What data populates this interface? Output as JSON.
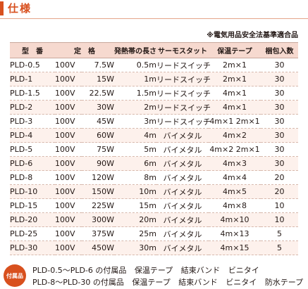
{
  "section_title": "仕様",
  "note": "※電気用品安全法基準適合品",
  "columns": [
    "型　番",
    "定　格",
    "発熱帯の長さ",
    "サーモスタット",
    "保温テープ",
    "梱包入数"
  ],
  "rows": [
    {
      "model": "PLD-0.5",
      "volt": "100V",
      "watt": "7.5W",
      "length": "0.5m",
      "thermostat": "リードスイッチ",
      "tape": "2m×1",
      "pack": "30"
    },
    {
      "model": "PLD-1",
      "volt": "100V",
      "watt": "15W",
      "length": "1m",
      "thermostat": "リードスイッチ",
      "tape": "2m×1",
      "pack": "30"
    },
    {
      "model": "PLD-1.5",
      "volt": "100V",
      "watt": "22.5W",
      "length": "1.5m",
      "thermostat": "リードスイッチ",
      "tape": "4m×1",
      "pack": "30"
    },
    {
      "model": "PLD-2",
      "volt": "100V",
      "watt": "30W",
      "length": "2m",
      "thermostat": "リードスイッチ",
      "tape": "4m×1",
      "pack": "30"
    },
    {
      "model": "PLD-3",
      "volt": "100V",
      "watt": "45W",
      "length": "3m",
      "thermostat": "リードスイッチ",
      "tape": "4m×1 2m×1",
      "pack": "30"
    },
    {
      "model": "PLD-4",
      "volt": "100V",
      "watt": "60W",
      "length": "4m",
      "thermostat": "バイメタル",
      "tape": "4m×2",
      "pack": "30"
    },
    {
      "model": "PLD-5",
      "volt": "100V",
      "watt": "75W",
      "length": "5m",
      "thermostat": "バイメタル",
      "tape": "4m×2 2m×1",
      "pack": "30"
    },
    {
      "model": "PLD-6",
      "volt": "100V",
      "watt": "90W",
      "length": "6m",
      "thermostat": "バイメタル",
      "tape": "4m×3",
      "pack": "30"
    },
    {
      "model": "PLD-8",
      "volt": "100V",
      "watt": "120W",
      "length": "8m",
      "thermostat": "バイメタル",
      "tape": "4m×4",
      "pack": "20"
    },
    {
      "model": "PLD-10",
      "volt": "100V",
      "watt": "150W",
      "length": "10m",
      "thermostat": "バイメタル",
      "tape": "4m×5",
      "pack": "20"
    },
    {
      "model": "PLD-15",
      "volt": "100V",
      "watt": "225W",
      "length": "15m",
      "thermostat": "バイメタル",
      "tape": "4m×8",
      "pack": "10"
    },
    {
      "model": "PLD-20",
      "volt": "100V",
      "watt": "300W",
      "length": "20m",
      "thermostat": "バイメタル",
      "tape": "4m×10",
      "pack": "10"
    },
    {
      "model": "PLD-25",
      "volt": "100V",
      "watt": "375W",
      "length": "25m",
      "thermostat": "バイメタル",
      "tape": "4m×13",
      "pack": "5"
    },
    {
      "model": "PLD-30",
      "volt": "100V",
      "watt": "450W",
      "length": "30m",
      "thermostat": "バイメタル",
      "tape": "4m×15",
      "pack": "5"
    }
  ],
  "accessories": {
    "badge": "付属品",
    "lines": [
      {
        "range": "PLD-0.5～PLD-6 の付属品",
        "items": [
          "保温テープ",
          "結束バンド",
          "ビニタイ"
        ]
      },
      {
        "range": "PLD-8～PLD-30 の付属品",
        "items": [
          "保温テープ",
          "結束バンド",
          "ビニタイ",
          "防水テープ"
        ]
      }
    ]
  },
  "colors": {
    "accent": "#d8501e",
    "header_bg": "#f6d9cf",
    "stripe_bg": "#fdf1ec"
  }
}
